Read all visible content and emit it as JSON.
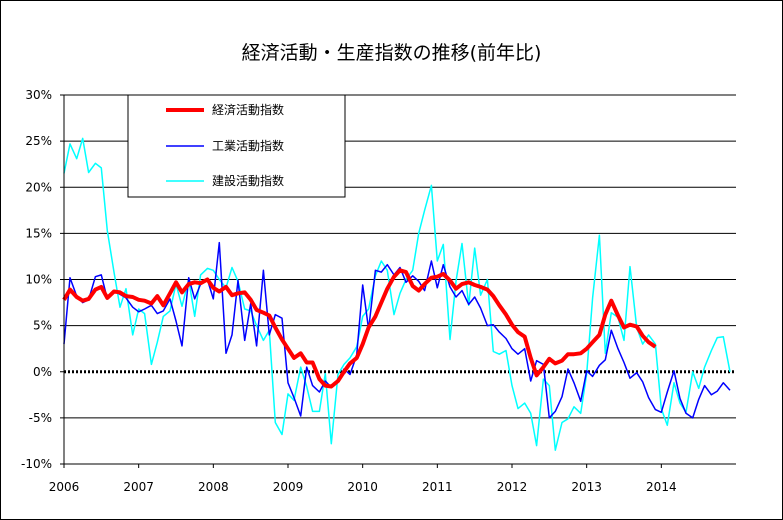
{
  "chart_data": {
    "type": "line",
    "title": "経済活動・生産指数の推移(前年比)",
    "xlabel": "",
    "ylabel": "",
    "ylim": [
      -10,
      30
    ],
    "y_ticks": [
      "30%",
      "25%",
      "20%",
      "15%",
      "10%",
      "5%",
      "0%",
      "-5%",
      "-10%"
    ],
    "y_tick_values": [
      30,
      25,
      20,
      15,
      10,
      5,
      0,
      -5,
      -10
    ],
    "x_ticks": [
      "2006",
      "2007",
      "2008",
      "2009",
      "2010",
      "2011",
      "2012",
      "2013",
      "2014"
    ],
    "x_tick_values": [
      2006,
      2007,
      2008,
      2009,
      2010,
      2011,
      2012,
      2013,
      2014
    ],
    "xlim": [
      2006,
      2015
    ],
    "grid": "horizontal",
    "zero_line": "dotted",
    "legend_position": "top-left",
    "series": [
      {
        "name": "経済活動指数",
        "color": "#ff0000",
        "x": [
          2006.0,
          2006.08,
          2006.17,
          2006.25,
          2006.33,
          2006.42,
          2006.5,
          2006.58,
          2006.67,
          2006.75,
          2006.83,
          2006.92,
          2007.0,
          2007.08,
          2007.17,
          2007.25,
          2007.33,
          2007.42,
          2007.5,
          2007.58,
          2007.67,
          2007.75,
          2007.83,
          2007.92,
          2008.0,
          2008.08,
          2008.17,
          2008.25,
          2008.33,
          2008.42,
          2008.5,
          2008.58,
          2008.67,
          2008.75,
          2008.83,
          2008.92,
          2009.0,
          2009.08,
          2009.17,
          2009.25,
          2009.33,
          2009.42,
          2009.5,
          2009.58,
          2009.67,
          2009.75,
          2009.83,
          2009.92,
          2010.0,
          2010.08,
          2010.17,
          2010.25,
          2010.33,
          2010.42,
          2010.5,
          2010.58,
          2010.67,
          2010.75,
          2010.83,
          2010.92,
          2011.0,
          2011.08,
          2011.17,
          2011.25,
          2011.33,
          2011.42,
          2011.5,
          2011.58,
          2011.67,
          2011.75,
          2011.83,
          2011.92,
          2012.0,
          2012.08,
          2012.17,
          2012.25,
          2012.33,
          2012.42,
          2012.5,
          2012.58,
          2012.67,
          2012.75,
          2012.83,
          2012.92,
          2013.0,
          2013.08,
          2013.17,
          2013.25,
          2013.33,
          2013.42,
          2013.5,
          2013.58,
          2013.67,
          2013.75,
          2013.83,
          2013.92
        ],
        "values": [
          7.8,
          8.9,
          8.1,
          7.7,
          7.9,
          8.9,
          9.2,
          8.0,
          8.7,
          8.6,
          8.2,
          8.1,
          7.8,
          7.7,
          7.4,
          8.2,
          7.2,
          8.5,
          9.7,
          8.6,
          9.5,
          9.7,
          9.6,
          10.0,
          9.1,
          8.7,
          9.2,
          8.3,
          8.5,
          8.6,
          7.8,
          6.7,
          6.4,
          6.1,
          4.8,
          3.5,
          2.5,
          1.5,
          2.0,
          1.0,
          1.0,
          -0.8,
          -1.5,
          -1.6,
          -1.0,
          0.0,
          0.9,
          1.5,
          3.0,
          4.8,
          6.0,
          7.5,
          9.0,
          10.3,
          11.0,
          10.8,
          9.3,
          8.8,
          9.5,
          10.2,
          10.3,
          10.6,
          9.9,
          9.0,
          9.5,
          9.7,
          9.4,
          9.2,
          8.9,
          8.2,
          7.2,
          6.2,
          5.1,
          4.3,
          3.8,
          1.5,
          -0.4,
          0.5,
          1.4,
          0.9,
          1.2,
          1.9,
          1.9,
          2.0,
          2.5,
          3.2,
          4.0,
          6.2,
          7.7,
          6.1,
          4.8,
          5.1,
          4.9,
          3.9,
          3.2,
          2.7
        ]
      },
      {
        "name": "工業活動指数",
        "color": "#0000ff",
        "x": [
          2006.0,
          2006.08,
          2006.17,
          2006.25,
          2006.33,
          2006.42,
          2006.5,
          2006.58,
          2006.67,
          2006.75,
          2006.83,
          2006.92,
          2007.0,
          2007.08,
          2007.17,
          2007.25,
          2007.33,
          2007.42,
          2007.5,
          2007.58,
          2007.67,
          2007.75,
          2007.83,
          2007.92,
          2008.0,
          2008.08,
          2008.17,
          2008.25,
          2008.33,
          2008.42,
          2008.5,
          2008.58,
          2008.67,
          2008.75,
          2008.83,
          2008.92,
          2009.0,
          2009.08,
          2009.17,
          2009.25,
          2009.33,
          2009.42,
          2009.5,
          2009.58,
          2009.67,
          2009.75,
          2009.83,
          2009.92,
          2010.0,
          2010.08,
          2010.17,
          2010.25,
          2010.33,
          2010.42,
          2010.5,
          2010.58,
          2010.67,
          2010.75,
          2010.83,
          2010.92,
          2011.0,
          2011.08,
          2011.17,
          2011.25,
          2011.33,
          2011.42,
          2011.5,
          2011.58,
          2011.67,
          2011.75,
          2011.83,
          2011.92,
          2012.0,
          2012.08,
          2012.17,
          2012.25,
          2012.33,
          2012.42,
          2012.5,
          2012.58,
          2012.67,
          2012.75,
          2012.83,
          2012.92,
          2013.0,
          2013.08,
          2013.17,
          2013.25,
          2013.33,
          2013.42,
          2013.5,
          2013.58,
          2013.67,
          2013.75,
          2013.83,
          2013.92,
          2014.0,
          2014.08,
          2014.17,
          2014.25,
          2014.33,
          2014.42,
          2014.5,
          2014.58,
          2014.67,
          2014.75,
          2014.83,
          2014.92
        ],
        "values": [
          3.0,
          10.2,
          8.2,
          7.5,
          7.8,
          10.3,
          10.5,
          7.9,
          8.8,
          8.4,
          8.0,
          7.0,
          6.5,
          6.8,
          7.2,
          6.3,
          6.6,
          7.9,
          5.5,
          2.8,
          10.2,
          7.9,
          9.5,
          10.0,
          7.9,
          14.0,
          2.0,
          4.0,
          9.9,
          3.4,
          7.4,
          2.8,
          11.0,
          4.0,
          6.2,
          5.8,
          -1.2,
          -2.8,
          -4.8,
          0.5,
          -1.5,
          -2.2,
          -1.0,
          -1.7,
          -0.9,
          0.3,
          -0.3,
          1.8,
          9.4,
          4.6,
          11.0,
          10.8,
          11.6,
          10.5,
          11.3,
          9.7,
          10.4,
          9.8,
          8.8,
          12.0,
          9.1,
          11.6,
          9.2,
          8.1,
          8.8,
          7.3,
          8.1,
          6.9,
          5.0,
          5.1,
          4.3,
          3.6,
          2.5,
          1.9,
          2.5,
          -1.0,
          1.2,
          0.8,
          -5.0,
          -4.3,
          -2.7,
          0.3,
          -1.2,
          -3.2,
          0.1,
          -0.5,
          0.7,
          1.3,
          4.5,
          2.5,
          1.0,
          -0.7,
          -0.1,
          -1.1,
          -2.8,
          -4.1,
          -4.4,
          -2.2,
          0.1,
          -2.9,
          -4.5,
          -5.0,
          -3.0,
          -1.5,
          -2.5,
          -2.1,
          -1.2,
          -2.0
        ]
      },
      {
        "name": "建設活動指数",
        "color": "#00ffff",
        "x": [
          2006.0,
          2006.08,
          2006.17,
          2006.25,
          2006.33,
          2006.42,
          2006.5,
          2006.58,
          2006.67,
          2006.75,
          2006.83,
          2006.92,
          2007.0,
          2007.08,
          2007.17,
          2007.25,
          2007.33,
          2007.42,
          2007.5,
          2007.58,
          2007.67,
          2007.75,
          2007.83,
          2007.92,
          2008.0,
          2008.08,
          2008.17,
          2008.25,
          2008.33,
          2008.42,
          2008.5,
          2008.58,
          2008.67,
          2008.75,
          2008.83,
          2008.92,
          2009.0,
          2009.08,
          2009.17,
          2009.25,
          2009.33,
          2009.42,
          2009.5,
          2009.58,
          2009.67,
          2009.75,
          2009.83,
          2009.92,
          2010.0,
          2010.08,
          2010.17,
          2010.25,
          2010.33,
          2010.42,
          2010.5,
          2010.58,
          2010.67,
          2010.75,
          2010.83,
          2010.92,
          2011.0,
          2011.08,
          2011.17,
          2011.25,
          2011.33,
          2011.42,
          2011.5,
          2011.58,
          2011.67,
          2011.75,
          2011.83,
          2011.92,
          2012.0,
          2012.08,
          2012.17,
          2012.25,
          2012.33,
          2012.42,
          2012.5,
          2012.58,
          2012.67,
          2012.75,
          2012.83,
          2012.92,
          2013.0,
          2013.08,
          2013.17,
          2013.25,
          2013.33,
          2013.42,
          2013.5,
          2013.58,
          2013.67,
          2013.75,
          2013.83,
          2013.92,
          2014.0,
          2014.08,
          2014.17,
          2014.25,
          2014.33,
          2014.42,
          2014.5,
          2014.58,
          2014.67,
          2014.75,
          2014.83,
          2014.92
        ],
        "values": [
          21.5,
          24.7,
          23.1,
          25.3,
          21.6,
          22.6,
          22.1,
          15.3,
          10.8,
          7.0,
          9.0,
          4.0,
          6.8,
          6.3,
          0.8,
          3.2,
          6.0,
          6.6,
          9.5,
          7.1,
          10.0,
          6.0,
          10.5,
          11.2,
          11.0,
          10.0,
          9.1,
          11.3,
          9.8,
          6.8,
          6.6,
          5.0,
          3.4,
          4.5,
          -5.5,
          -6.8,
          -2.4,
          -3.1,
          0.5,
          -1.6,
          -4.3,
          -4.3,
          -0.2,
          -7.8,
          -0.3,
          0.8,
          1.5,
          2.7,
          6.0,
          6.8,
          10.4,
          12.0,
          11.0,
          6.2,
          8.5,
          10.0,
          11.0,
          15.0,
          17.5,
          20.2,
          12.0,
          13.8,
          3.5,
          9.8,
          13.9,
          7.2,
          13.4,
          8.3,
          10.0,
          2.2,
          1.9,
          2.3,
          -1.5,
          -4.0,
          -3.4,
          -4.5,
          -8.0,
          -0.8,
          -1.5,
          -8.5,
          -5.5,
          -5.1,
          -3.8,
          -4.5,
          -0.2,
          8.0,
          14.8,
          2.0,
          6.4,
          5.9,
          3.4,
          11.4,
          4.8,
          3.0,
          4.0,
          3.0,
          -4.0,
          -5.8,
          -1.2,
          -3.4,
          -4.4,
          0.0,
          -1.8,
          0.5,
          2.3,
          3.7,
          3.8,
          0.0
        ]
      }
    ]
  }
}
